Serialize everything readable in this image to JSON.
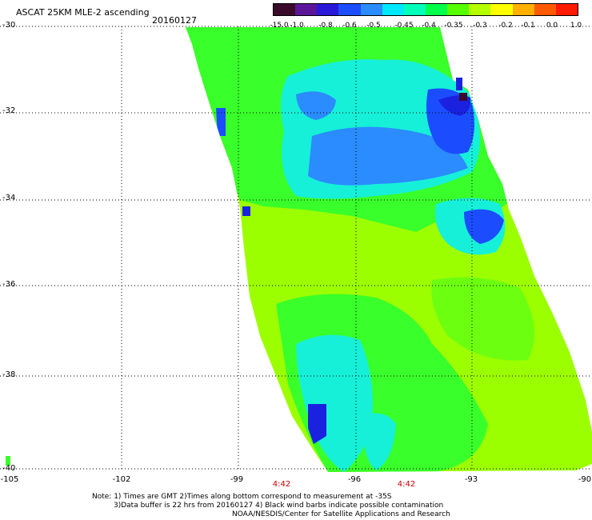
{
  "header": {
    "title": "ASCAT 25KM MLE-2 ascending",
    "date": "20160127"
  },
  "colorbar": {
    "colors": [
      "#3a0a2a",
      "#5b1599",
      "#2a18d8",
      "#1b4dff",
      "#2a8cff",
      "#00e8ff",
      "#00ffb8",
      "#00ff4a",
      "#55ff00",
      "#b4ff00",
      "#ffff00",
      "#ffb000",
      "#ff5a00",
      "#ff1a00"
    ],
    "labels": [
      "-15.0",
      "-1.0",
      "-0.8",
      "-0.6",
      "-0.5",
      "-0.45",
      "-0.4",
      "-0.35",
      "-0.3",
      "-0.2",
      "-0.1",
      "0.0",
      "1.0"
    ]
  },
  "axes": {
    "lat_labels": [
      "-30",
      "-32",
      "-34",
      "-36",
      "-38",
      "-40"
    ],
    "lon_labels": [
      "-105",
      "-102",
      "-99",
      "-96",
      "-93",
      "-90"
    ],
    "times": [
      "4:42",
      "4:42"
    ]
  },
  "notes": {
    "line1": "Note: 1) Times are GMT 2)Times along bottom correspond to measurement at -35S",
    "line2": "3)Data buffer is 22 hrs from 20160127 4) Black wind barbs indicate possible contamination",
    "line3": "NOAA/NESDIS/Center for Satellite Applications and Research"
  }
}
